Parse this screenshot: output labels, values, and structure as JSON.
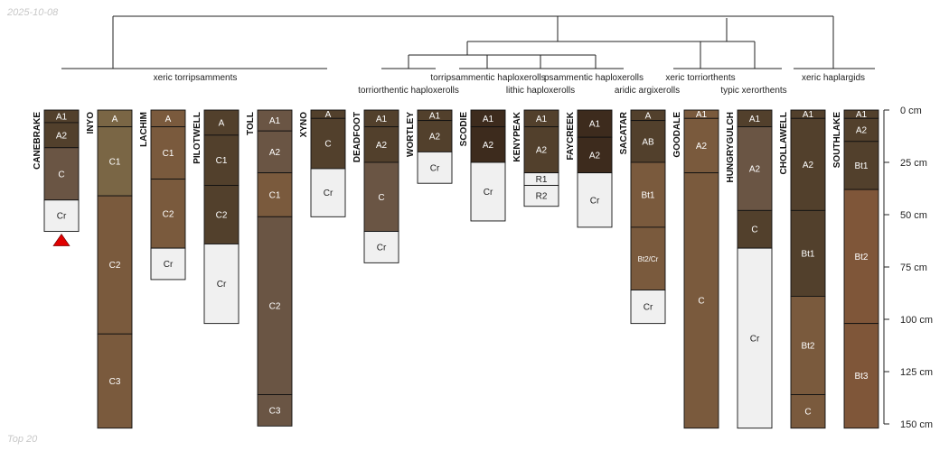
{
  "date_stamp": "2025-10-08",
  "footer_label": "Top 20",
  "colors": {
    "dark": "#3d2b1d",
    "mid_dark": "#52402c",
    "medium": "#6a5544",
    "olive": "#7a6645",
    "tan": "#7a5a3d",
    "light_tan": "#8a6a48",
    "rust": "#7f5639",
    "white_layer": "#f0f0f0",
    "marker": "#e00000"
  },
  "chart_data": {
    "type": "dendrogram-soil-profiles",
    "depth_unit": "cm",
    "depth_range": [
      0,
      150
    ],
    "depth_ticks": [
      "0 cm",
      "25 cm",
      "50 cm",
      "75 cm",
      "100 cm",
      "125 cm",
      "150 cm"
    ],
    "depth_tick_values": [
      0,
      25,
      50,
      75,
      100,
      125,
      150
    ],
    "taxa_labels": [
      "xeric torripsamments",
      "torriorthentic haploxerolls",
      "torripsammentic haploxerolls",
      "lithic haploxerolls",
      "psammentic haploxerolls",
      "aridic argixerolls",
      "xeric torriorthents",
      "typic xerorthents",
      "xeric haplargids"
    ],
    "profiles": [
      {
        "name": "CANEBRAKE",
        "marker": true,
        "horizons": [
          {
            "name": "A1",
            "top": 0,
            "bottom": 6,
            "color": "mid_dark"
          },
          {
            "name": "A2",
            "top": 6,
            "bottom": 18,
            "color": "mid_dark"
          },
          {
            "name": "C",
            "top": 18,
            "bottom": 43,
            "color": "medium"
          },
          {
            "name": "Cr",
            "top": 43,
            "bottom": 58,
            "color": "white_layer"
          }
        ]
      },
      {
        "name": "INYO",
        "horizons": [
          {
            "name": "A",
            "top": 0,
            "bottom": 8,
            "color": "olive"
          },
          {
            "name": "C1",
            "top": 8,
            "bottom": 41,
            "color": "olive"
          },
          {
            "name": "C2",
            "top": 41,
            "bottom": 107,
            "color": "tan"
          },
          {
            "name": "C3",
            "top": 107,
            "bottom": 152,
            "color": "tan"
          }
        ]
      },
      {
        "name": "LACHIM",
        "horizons": [
          {
            "name": "A",
            "top": 0,
            "bottom": 8,
            "color": "tan"
          },
          {
            "name": "C1",
            "top": 8,
            "bottom": 33,
            "color": "tan"
          },
          {
            "name": "C2",
            "top": 33,
            "bottom": 66,
            "color": "tan"
          },
          {
            "name": "Cr",
            "top": 66,
            "bottom": 81,
            "color": "white_layer"
          }
        ]
      },
      {
        "name": "PILOTWELL",
        "horizons": [
          {
            "name": "A",
            "top": 0,
            "bottom": 12,
            "color": "mid_dark"
          },
          {
            "name": "C1",
            "top": 12,
            "bottom": 36,
            "color": "mid_dark"
          },
          {
            "name": "C2",
            "top": 36,
            "bottom": 64,
            "color": "mid_dark"
          },
          {
            "name": "Cr",
            "top": 64,
            "bottom": 102,
            "color": "white_layer"
          }
        ]
      },
      {
        "name": "TOLL",
        "horizons": [
          {
            "name": "A1",
            "top": 0,
            "bottom": 10,
            "color": "medium"
          },
          {
            "name": "A2",
            "top": 10,
            "bottom": 30,
            "color": "medium"
          },
          {
            "name": "C1",
            "top": 30,
            "bottom": 51,
            "color": "tan"
          },
          {
            "name": "C2",
            "top": 51,
            "bottom": 136,
            "color": "medium"
          },
          {
            "name": "C3",
            "top": 136,
            "bottom": 151,
            "color": "medium"
          }
        ]
      },
      {
        "name": "XYNO",
        "horizons": [
          {
            "name": "A",
            "top": 0,
            "bottom": 4,
            "color": "mid_dark"
          },
          {
            "name": "C",
            "top": 4,
            "bottom": 28,
            "color": "mid_dark"
          },
          {
            "name": "Cr",
            "top": 28,
            "bottom": 51,
            "color": "white_layer"
          }
        ]
      },
      {
        "name": "DEADFOOT",
        "horizons": [
          {
            "name": "A1",
            "top": 0,
            "bottom": 8,
            "color": "mid_dark"
          },
          {
            "name": "A2",
            "top": 8,
            "bottom": 25,
            "color": "mid_dark"
          },
          {
            "name": "C",
            "top": 25,
            "bottom": 58,
            "color": "medium"
          },
          {
            "name": "Cr",
            "top": 58,
            "bottom": 73,
            "color": "white_layer"
          }
        ]
      },
      {
        "name": "WORTLEY",
        "horizons": [
          {
            "name": "A1",
            "top": 0,
            "bottom": 5,
            "color": "mid_dark"
          },
          {
            "name": "A2",
            "top": 5,
            "bottom": 20,
            "color": "mid_dark"
          },
          {
            "name": "Cr",
            "top": 20,
            "bottom": 35,
            "color": "white_layer"
          }
        ]
      },
      {
        "name": "SCODIE",
        "horizons": [
          {
            "name": "A1",
            "top": 0,
            "bottom": 8,
            "color": "dark"
          },
          {
            "name": "A2",
            "top": 8,
            "bottom": 25,
            "color": "dark"
          },
          {
            "name": "Cr",
            "top": 25,
            "bottom": 53,
            "color": "white_layer"
          }
        ]
      },
      {
        "name": "KENYPEAK",
        "horizons": [
          {
            "name": "A1",
            "top": 0,
            "bottom": 8,
            "color": "mid_dark"
          },
          {
            "name": "A2",
            "top": 8,
            "bottom": 30,
            "color": "mid_dark"
          },
          {
            "name": "R1",
            "top": 30,
            "bottom": 36,
            "color": "white_layer"
          },
          {
            "name": "R2",
            "top": 36,
            "bottom": 46,
            "color": "white_layer"
          }
        ]
      },
      {
        "name": "FAYCREEK",
        "horizons": [
          {
            "name": "A1",
            "top": 0,
            "bottom": 13,
            "color": "dark"
          },
          {
            "name": "A2",
            "top": 13,
            "bottom": 30,
            "color": "dark"
          },
          {
            "name": "Cr",
            "top": 30,
            "bottom": 56,
            "color": "white_layer"
          }
        ]
      },
      {
        "name": "SACATAR",
        "horizons": [
          {
            "name": "A",
            "top": 0,
            "bottom": 5,
            "color": "mid_dark"
          },
          {
            "name": "AB",
            "top": 5,
            "bottom": 25,
            "color": "mid_dark"
          },
          {
            "name": "Bt1",
            "top": 25,
            "bottom": 56,
            "color": "tan"
          },
          {
            "name": "Bt2/Cr",
            "top": 56,
            "bottom": 86,
            "color": "tan"
          },
          {
            "name": "Cr",
            "top": 86,
            "bottom": 102,
            "color": "white_layer"
          }
        ]
      },
      {
        "name": "GOODALE",
        "horizons": [
          {
            "name": "A1",
            "top": 0,
            "bottom": 4,
            "color": "tan"
          },
          {
            "name": "A2",
            "top": 4,
            "bottom": 30,
            "color": "tan"
          },
          {
            "name": "C",
            "top": 30,
            "bottom": 152,
            "color": "tan"
          }
        ]
      },
      {
        "name": "HUNGRYGULCH",
        "horizons": [
          {
            "name": "A1",
            "top": 0,
            "bottom": 8,
            "color": "mid_dark"
          },
          {
            "name": "A2",
            "top": 8,
            "bottom": 48,
            "color": "medium"
          },
          {
            "name": "C",
            "top": 48,
            "bottom": 66,
            "color": "mid_dark"
          },
          {
            "name": "Cr",
            "top": 66,
            "bottom": 152,
            "color": "white_layer"
          }
        ]
      },
      {
        "name": "CHOLLAWELL",
        "horizons": [
          {
            "name": "A1",
            "top": 0,
            "bottom": 4,
            "color": "mid_dark"
          },
          {
            "name": "A2",
            "top": 4,
            "bottom": 48,
            "color": "mid_dark"
          },
          {
            "name": "Bt1",
            "top": 48,
            "bottom": 89,
            "color": "mid_dark"
          },
          {
            "name": "Bt2",
            "top": 89,
            "bottom": 136,
            "color": "tan"
          },
          {
            "name": "C",
            "top": 136,
            "bottom": 152,
            "color": "tan"
          }
        ]
      },
      {
        "name": "SOUTHLAKE",
        "horizons": [
          {
            "name": "A1",
            "top": 0,
            "bottom": 4,
            "color": "mid_dark"
          },
          {
            "name": "A2",
            "top": 4,
            "bottom": 15,
            "color": "mid_dark"
          },
          {
            "name": "Bt1",
            "top": 15,
            "bottom": 38,
            "color": "mid_dark"
          },
          {
            "name": "Bt2",
            "top": 38,
            "bottom": 102,
            "color": "rust"
          },
          {
            "name": "Bt3",
            "top": 102,
            "bottom": 152,
            "color": "rust"
          }
        ]
      }
    ]
  }
}
